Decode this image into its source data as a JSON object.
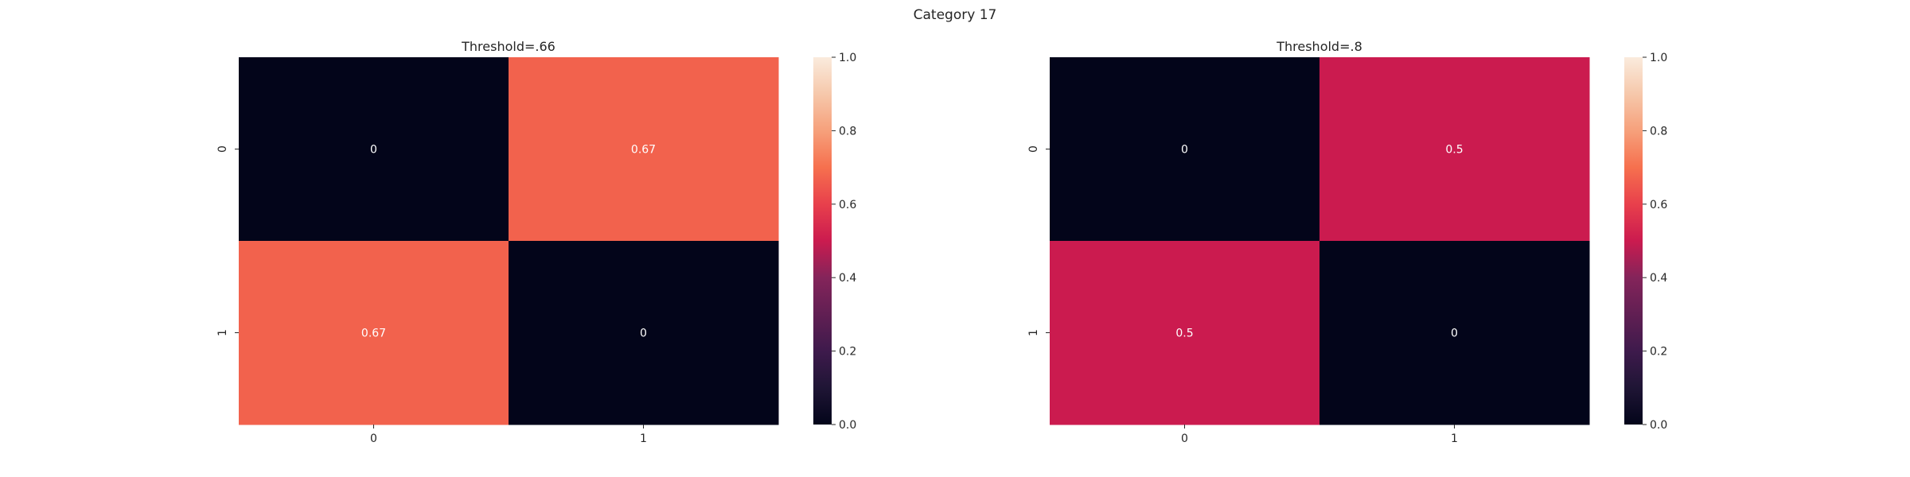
{
  "figure": {
    "title": "Category 17"
  },
  "chart_data": [
    {
      "type": "heatmap",
      "title": "Threshold=.66",
      "x_categories": [
        "0",
        "1"
      ],
      "y_categories": [
        "0",
        "1"
      ],
      "values": [
        [
          0,
          0.67
        ],
        [
          0.67,
          0
        ]
      ],
      "cell_labels": [
        [
          "0",
          "0.67"
        ],
        [
          "0.67",
          "0"
        ]
      ],
      "colorbar": {
        "range": [
          0,
          1
        ],
        "ticks": [
          "0.0",
          "0.2",
          "0.4",
          "0.6",
          "0.8",
          "1.0"
        ]
      },
      "colormap": "rocket"
    },
    {
      "type": "heatmap",
      "title": "Threshold=.8",
      "x_categories": [
        "0",
        "1"
      ],
      "y_categories": [
        "0",
        "1"
      ],
      "values": [
        [
          0,
          0.5
        ],
        [
          0.5,
          0
        ]
      ],
      "cell_labels": [
        [
          "0",
          "0.5"
        ],
        [
          "0.5",
          "0"
        ]
      ],
      "colorbar": {
        "range": [
          0,
          1
        ],
        "ticks": [
          "0.0",
          "0.2",
          "0.4",
          "0.6",
          "0.8",
          "1.0"
        ]
      },
      "colormap": "rocket"
    }
  ]
}
